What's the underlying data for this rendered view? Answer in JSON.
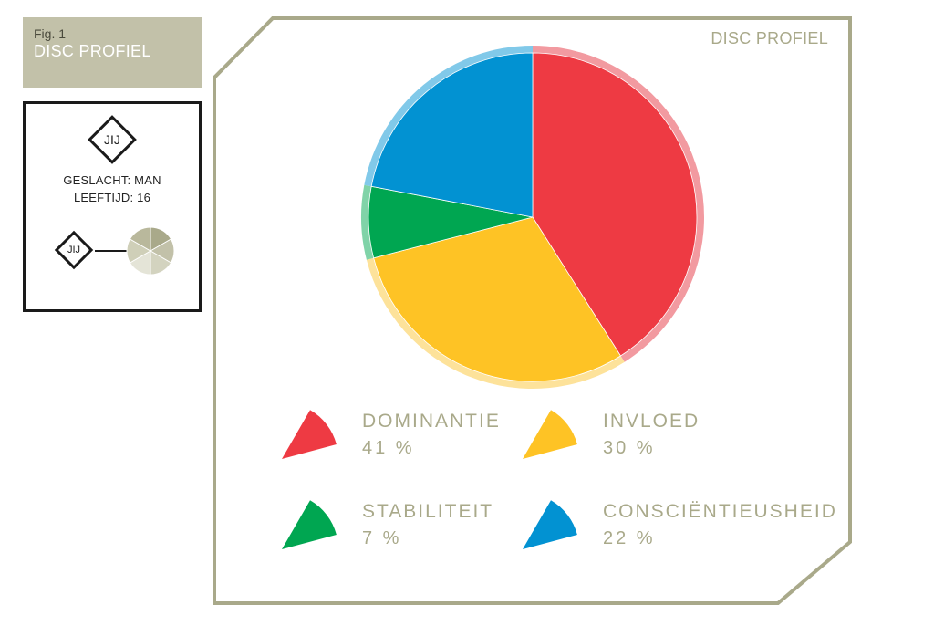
{
  "figure": {
    "label": "Fig. 1",
    "title": "DISC PROFIEL"
  },
  "profile": {
    "badge_large": "JIJ",
    "badge_small": "JIJ",
    "gender": "GESLACHT: MAN",
    "age": "LEEFTIJD: 16"
  },
  "panel": {
    "title": "DISC PROFIEL"
  },
  "colors": {
    "frame": "#a9a98a",
    "sidebar": "#c2c1a9"
  },
  "chart_data": {
    "type": "pie",
    "title": "DISC PROFIEL",
    "start_angle_deg": 270,
    "direction": "clockwise",
    "legend_position": "bottom",
    "slices": [
      {
        "label": "DOMINANTIE",
        "value": 41,
        "value_label": "41 %",
        "color": "#ee3a43",
        "ring": "#f29aa0"
      },
      {
        "label": "INVLOED",
        "value": 30,
        "value_label": "30 %",
        "color": "#fec325",
        "ring": "#fde29a"
      },
      {
        "label": "STABILITEIT",
        "value": 7,
        "value_label": "7 %",
        "color": "#00a651",
        "ring": "#80d3a8"
      },
      {
        "label": "CONSCIËNTIEUSHEID",
        "value": 22,
        "value_label": "22 %",
        "color": "#0292d2",
        "ring": "#81c9e9"
      }
    ]
  }
}
